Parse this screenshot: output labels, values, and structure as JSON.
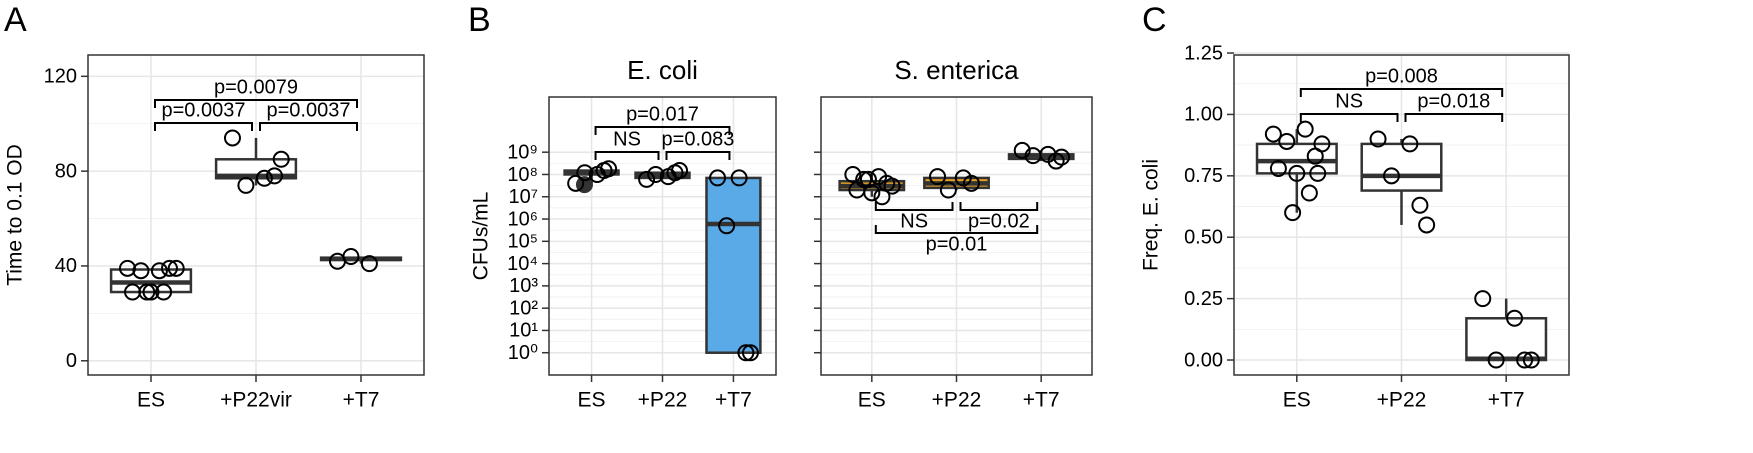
{
  "chart_data": [
    {
      "type": "box",
      "panel_label": "A",
      "y_label": "Time to 0.1 OD",
      "categories": [
        "ES",
        "+P22vir",
        "+T7"
      ],
      "boxes": [
        {
          "whisker_low": 29,
          "q1": 29,
          "median": 33,
          "q3": 38.5,
          "whisker_high": 39,
          "points": [
            39,
            38,
            38,
            39,
            39,
            29,
            29,
            29,
            29
          ]
        },
        {
          "whisker_low": 74,
          "q1": 77,
          "median": 78,
          "q3": 85,
          "whisker_high": 94,
          "points": [
            94,
            77,
            74,
            78,
            85
          ]
        },
        {
          "whisker_low": 41,
          "q1": 42.5,
          "median": 43,
          "q3": 43.5,
          "whisker_high": 44,
          "points": [
            42,
            41,
            44
          ]
        }
      ],
      "color": "#ffffff",
      "ylim": [
        -6,
        129
      ],
      "yticks": [
        0,
        40,
        80,
        120
      ],
      "grid": true,
      "log_scale": false,
      "tick_labels": true,
      "comparisons": [
        {
          "label": "p=0.0079",
          "pair": [
            "ES",
            "+T7"
          ]
        },
        {
          "label": "p=0.0037",
          "pair": [
            "ES",
            "+P22vir"
          ]
        },
        {
          "label": "p=0.0037",
          "pair": [
            "+P22vir",
            "+T7"
          ]
        }
      ]
    },
    {
      "type": "box",
      "panel_label": "B",
      "title": "E. coli",
      "y_label": "CFUs/mL",
      "categories": [
        "ES",
        "+P22",
        "+T7"
      ],
      "boxes": [
        {
          "whisker_low": 40000000,
          "q1": 100000000,
          "median": 120000000,
          "q3": 150000000,
          "whisker_high": 200000000,
          "points": [
            40000000,
            100000000,
            120000000,
            150000000,
            180000000
          ],
          "outliers": [
            35000000
          ]
        },
        {
          "whisker_low": 60000000,
          "q1": 70000000,
          "median": 90000000,
          "q3": 120000000,
          "whisker_high": 150000000,
          "points": [
            60000000,
            80000000,
            100000000,
            120000000,
            150000000
          ]
        },
        {
          "whisker_low": 1,
          "q1": 1,
          "median": 600000,
          "q3": 70000000,
          "whisker_high": 70000000,
          "points": [
            70000000,
            70000000,
            500000,
            1,
            1
          ]
        }
      ],
      "color": "#5aaae8",
      "ylim": [
        0.1,
        300000000000
      ],
      "log_scale": true,
      "grid": true,
      "tick_labels": true,
      "yticks": [
        {
          "value": 1,
          "label": "10⁰"
        },
        {
          "value": 10,
          "label": "10¹"
        },
        {
          "value": 100,
          "label": "10²"
        },
        {
          "value": 1000,
          "label": "10³"
        },
        {
          "value": 10000,
          "label": "10⁴"
        },
        {
          "value": 100000,
          "label": "10⁵"
        },
        {
          "value": 1000000,
          "label": "10⁶"
        },
        {
          "value": 10000000,
          "label": "10⁷"
        },
        {
          "value": 100000000,
          "label": "10⁸"
        },
        {
          "value": 1000000000,
          "label": "10⁹"
        }
      ],
      "comparisons": [
        {
          "label": "p=0.017",
          "pair": [
            "ES",
            "+T7"
          ]
        },
        {
          "label": "NS",
          "pair": [
            "ES",
            "+P22"
          ]
        },
        {
          "label": "p=0.083",
          "pair": [
            "+P22",
            "+T7"
          ]
        }
      ]
    },
    {
      "type": "box",
      "title": "S. enterica",
      "categories": [
        "ES",
        "+P22",
        "+T7"
      ],
      "boxes": [
        {
          "whisker_low": 10000000,
          "q1": 20000000,
          "median": 30000000,
          "q3": 50000000,
          "whisker_high": 100000000,
          "points": [
            100000000,
            80000000,
            60000000,
            40000000,
            30000000,
            20000000,
            15000000,
            10000000,
            60000000
          ]
        },
        {
          "whisker_low": 20000000,
          "q1": 25000000,
          "median": 40000000,
          "q3": 70000000,
          "whisker_high": 80000000,
          "points": [
            80000000,
            70000000,
            20000000,
            40000000
          ]
        },
        {
          "whisker_low": 400000000,
          "q1": 500000000,
          "median": 700000000,
          "q3": 800000000,
          "whisker_high": 1200000000,
          "points": [
            1200000000,
            800000000,
            700000000,
            400000000,
            600000000
          ]
        }
      ],
      "color": "#e8a020",
      "ylim": [
        0.1,
        300000000000
      ],
      "log_scale": true,
      "grid": true,
      "tick_labels": false,
      "yticks": [
        1,
        10,
        100,
        1000,
        10000,
        100000,
        1000000,
        10000000,
        100000000,
        1000000000
      ],
      "comparisons": [
        {
          "label": "NS",
          "pair": [
            "ES",
            "+P22"
          ]
        },
        {
          "label": "p=0.02",
          "pair": [
            "+P22",
            "+T7"
          ]
        },
        {
          "label": "p=0.01",
          "pair": [
            "ES",
            "+T7"
          ]
        }
      ]
    },
    {
      "type": "box",
      "panel_label": "C",
      "y_label": "Freq. E. coli",
      "categories": [
        "ES",
        "+P22",
        "+T7"
      ],
      "boxes": [
        {
          "whisker_low": 0.6,
          "q1": 0.76,
          "median": 0.81,
          "q3": 0.88,
          "whisker_high": 0.94,
          "points": [
            0.92,
            0.94,
            0.89,
            0.83,
            0.88,
            0.78,
            0.76,
            0.68,
            0.6,
            0.76
          ]
        },
        {
          "whisker_low": 0.55,
          "q1": 0.69,
          "median": 0.75,
          "q3": 0.88,
          "whisker_high": 0.9,
          "points": [
            0.9,
            0.88,
            0.75,
            0.63,
            0.55
          ]
        },
        {
          "whisker_low": 0,
          "q1": 0,
          "median": 0.005,
          "q3": 0.17,
          "whisker_high": 0.25,
          "points": [
            0.25,
            0.17,
            0,
            0,
            0
          ]
        }
      ],
      "color": "#ffffff",
      "ylim": [
        -0.061,
        1.242
      ],
      "log_scale": false,
      "grid": true,
      "tick_labels": true,
      "yticks": [
        {
          "value": 0,
          "label": "0.00"
        },
        0.25,
        {
          "value": 0.5,
          "label": "0.50"
        },
        0.75,
        {
          "value": 1,
          "label": "1.00"
        },
        1.25
      ],
      "comparisons": [
        {
          "label": "p=0.008",
          "pair": [
            "ES",
            "+T7"
          ]
        },
        {
          "label": "NS",
          "pair": [
            "ES",
            "+P22"
          ]
        },
        {
          "label": "p=0.018",
          "pair": [
            "+P22",
            "+T7"
          ]
        }
      ]
    }
  ]
}
